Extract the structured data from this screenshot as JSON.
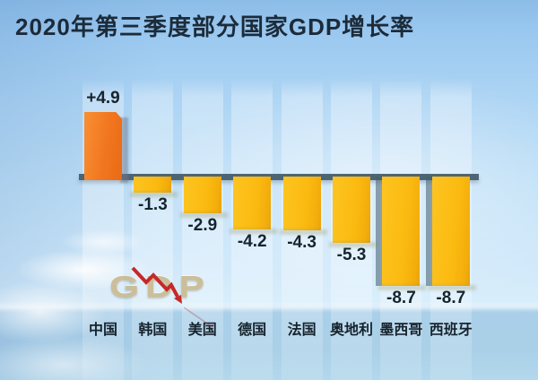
{
  "page": {
    "title": "2020年第三季度部分国家GDP增长率"
  },
  "watermark": {
    "text": "GDP"
  },
  "decor": {
    "arrow_color": "#c62828",
    "arrow_reflection_color": "rgba(170,60,60,0.35)"
  },
  "chart_data": {
    "type": "bar",
    "title": "2020年第三季度部分国家GDP增长率",
    "categories": [
      "中国",
      "韩国",
      "美国",
      "德国",
      "法国",
      "奥地利",
      "墨西哥",
      "西班牙"
    ],
    "values": [
      4.9,
      -1.3,
      -2.9,
      -4.2,
      -4.3,
      -5.3,
      -8.7,
      -8.7
    ],
    "value_labels": [
      "+4.9",
      "-1.3",
      "-2.9",
      "-4.2",
      "-4.3",
      "-5.3",
      "-8.7",
      "-8.7"
    ],
    "ylim": [
      -8.7,
      4.9
    ],
    "grid": "off",
    "legend": "none",
    "positive_bar_color": "#f1771f",
    "negative_bar_color": "#fbba10",
    "baseline_color": "#4d6573",
    "value_label_color": "#17242e",
    "category_label_color": "#16232d",
    "title_color": "#1c2b3a",
    "background_color": "#b3d8f2"
  }
}
